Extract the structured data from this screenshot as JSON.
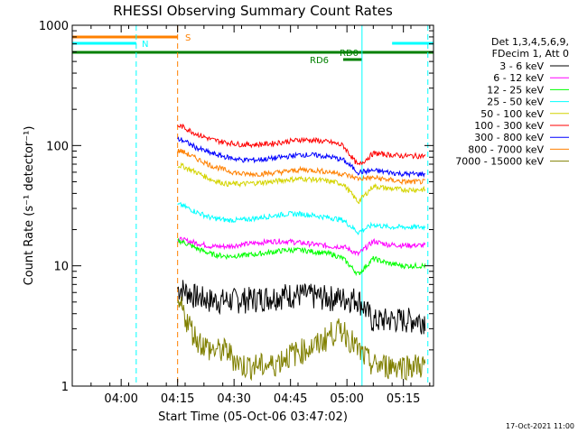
{
  "chart_data": {
    "type": "line",
    "title": "RHESSI Observing Summary Count Rates",
    "xlabel": "Start Time (05-Oct-06 03:47:02)",
    "ylabel": "Count Rate (s⁻¹ detector⁻¹)",
    "yscale": "log",
    "ylim": [
      1,
      1000
    ],
    "xlim_minutes": [
      0,
      96
    ],
    "x_ticks": [
      {
        "t": 13,
        "label": "04:00"
      },
      {
        "t": 28,
        "label": "04:15"
      },
      {
        "t": 43,
        "label": "04:30"
      },
      {
        "t": 58,
        "label": "04:45"
      },
      {
        "t": 73,
        "label": "05:00"
      },
      {
        "t": 88,
        "label": "05:15"
      }
    ],
    "y_ticks": [
      {
        "v": 1,
        "label": "1"
      },
      {
        "v": 10,
        "label": "10"
      },
      {
        "v": 100,
        "label": "100"
      },
      {
        "v": 1000,
        "label": "1000"
      }
    ],
    "legend_header": [
      "Det 1,3,4,5,6,9,",
      "FDecim 1, Att 0"
    ],
    "series": [
      {
        "name": "3 - 6 keV",
        "color": "#000000",
        "values": [
          6.5,
          5.6,
          5.2,
          5.2,
          5.3,
          5.4,
          5.6,
          5.8,
          5.8,
          5.6,
          5.5,
          5.4,
          5.4,
          3.5,
          3.6,
          3.6
        ]
      },
      {
        "name": "6 - 12 keV",
        "color": "#ff00ff",
        "values": [
          16.5,
          15.5,
          14.5,
          14.5,
          15.0,
          15.5,
          16.0,
          16.0,
          15.5,
          15.0,
          14.5,
          14.5,
          12.5,
          16.0,
          15.0,
          14.8
        ]
      },
      {
        "name": "12 - 25 keV",
        "color": "#00ff00",
        "values": [
          16.0,
          14.0,
          12.5,
          12.0,
          12.2,
          12.5,
          13.0,
          13.5,
          13.5,
          13.0,
          12.5,
          11.5,
          8.5,
          11.5,
          10.5,
          10.0
        ]
      },
      {
        "name": "25 - 50 keV",
        "color": "#00ffff",
        "values": [
          32,
          28,
          25,
          24,
          24,
          25,
          26,
          27,
          27,
          26,
          25,
          24,
          19,
          22,
          21,
          21
        ]
      },
      {
        "name": "50 - 100 keV",
        "color": "#d4d400",
        "values": [
          68,
          60,
          52,
          48,
          48,
          49,
          50,
          52,
          53,
          52,
          50,
          48,
          34,
          46,
          44,
          43
        ]
      },
      {
        "name": "100 - 300 keV",
        "color": "#ff0000",
        "values": [
          145,
          125,
          112,
          106,
          102,
          102,
          104,
          108,
          112,
          110,
          106,
          100,
          68,
          86,
          84,
          82
        ]
      },
      {
        "name": "300 - 800 keV",
        "color": "#0000ff",
        "values": [
          112,
          96,
          86,
          80,
          76,
          76,
          78,
          81,
          84,
          83,
          80,
          76,
          60,
          62,
          60,
          58
        ]
      },
      {
        "name": "800 - 7000 keV",
        "color": "#ff8000",
        "values": [
          90,
          78,
          68,
          62,
          58,
          58,
          59,
          61,
          63,
          62,
          60,
          58,
          53,
          54,
          52,
          50
        ]
      },
      {
        "name": "7000 - 15000 keV",
        "color": "#808000",
        "values": [
          4.5,
          2.5,
          2.0,
          2.0,
          1.5,
          1.5,
          1.5,
          1.8,
          2.0,
          2.2,
          2.8,
          3.0,
          2.0,
          1.5,
          1.5,
          1.5
        ]
      }
    ],
    "sample_times_minutes": [
      29,
      33,
      37,
      41,
      45,
      49,
      53,
      57,
      61,
      65,
      69,
      72,
      76,
      80,
      84,
      88
    ],
    "flags": [
      {
        "label": "S",
        "color": "#ff8000",
        "start": 0,
        "end": 28
      },
      {
        "label": "N",
        "color": "#00ffff",
        "start": 0,
        "end": 17
      },
      {
        "label": "N",
        "color": "#00ffff",
        "start": 85,
        "end": 96
      },
      {
        "label": "RD0",
        "color": "#008000",
        "start": 0,
        "end": 96
      },
      {
        "label": "RD6",
        "color": "#008000",
        "start": 72,
        "end": 77
      }
    ],
    "vertical_markers": [
      {
        "t": 0,
        "color": "#00ffff",
        "style": "solid"
      },
      {
        "t": 17,
        "color": "#00ffff",
        "style": "dashed"
      },
      {
        "t": 28,
        "color": "#ff8000",
        "style": "dashed"
      },
      {
        "t": 77,
        "color": "#00ffff",
        "style": "solid"
      },
      {
        "t": 94.5,
        "color": "#00ffff",
        "style": "dashed"
      }
    ]
  },
  "footer_stamp": "17-Oct-2021 11:00"
}
